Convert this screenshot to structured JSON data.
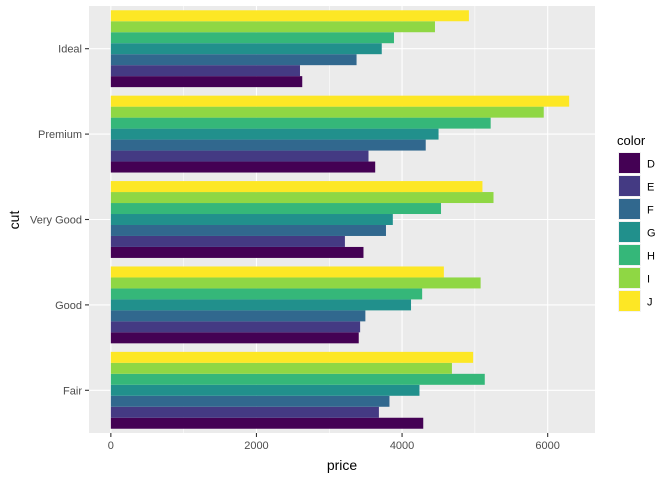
{
  "chart_data": {
    "type": "bar",
    "orientation": "horizontal",
    "xlabel": "price",
    "ylabel": "cut",
    "xlim": [
      -300,
      6650
    ],
    "x_ticks": [
      0,
      2000,
      4000,
      6000
    ],
    "x_tick_labels": [
      "0",
      "2000",
      "4000",
      "6000"
    ],
    "categories": [
      "Fair",
      "Good",
      "Very Good",
      "Premium",
      "Ideal"
    ],
    "legend": {
      "title": "color",
      "position": "right",
      "entries": [
        "D",
        "E",
        "F",
        "G",
        "H",
        "I",
        "J"
      ]
    },
    "grid": true,
    "series": [
      {
        "name": "D",
        "color": "#440154",
        "values": [
          4291,
          3405,
          3470,
          3631,
          2629
        ]
      },
      {
        "name": "E",
        "color": "#443A83",
        "values": [
          3682,
          3424,
          3215,
          3539,
          2598
        ]
      },
      {
        "name": "F",
        "color": "#31688E",
        "values": [
          3827,
          3496,
          3779,
          4325,
          3375
        ]
      },
      {
        "name": "G",
        "color": "#21908C",
        "values": [
          4239,
          4123,
          3873,
          4501,
          3721
        ]
      },
      {
        "name": "H",
        "color": "#35B779",
        "values": [
          5136,
          4276,
          4535,
          5217,
          3889
        ]
      },
      {
        "name": "I",
        "color": "#8FD744",
        "values": [
          4685,
          5079,
          5256,
          5946,
          4452
        ]
      },
      {
        "name": "J",
        "color": "#FDE725",
        "values": [
          4976,
          4574,
          5104,
          6295,
          4918
        ]
      }
    ]
  }
}
